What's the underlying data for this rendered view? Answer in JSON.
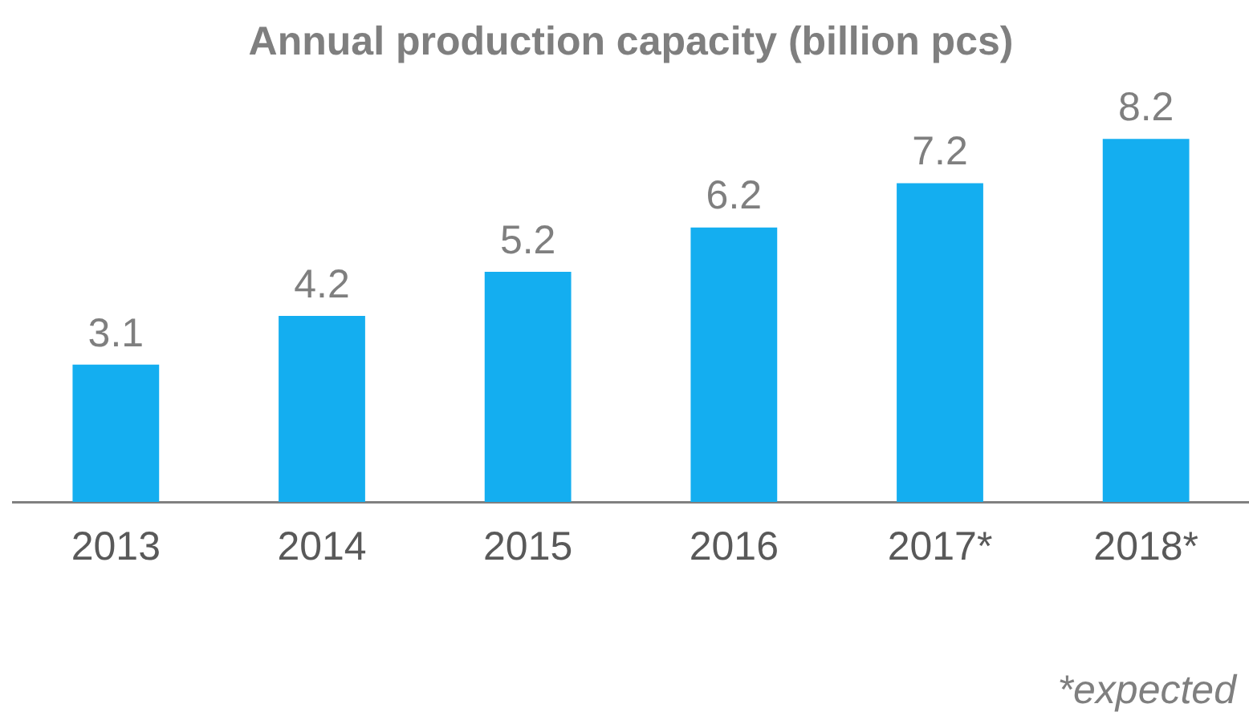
{
  "chart_data": {
    "type": "bar",
    "title": "Annual production capacity (billion pcs)",
    "categories": [
      "2013",
      "2014",
      "2015",
      "2016",
      "2017*",
      "2018*"
    ],
    "values": [
      3.1,
      4.2,
      5.2,
      6.2,
      7.2,
      8.2
    ],
    "color": "#14aef0",
    "data_labels": true,
    "tick_labels": "x",
    "grid": false,
    "legend": false,
    "annotations": [
      "*expected"
    ]
  }
}
